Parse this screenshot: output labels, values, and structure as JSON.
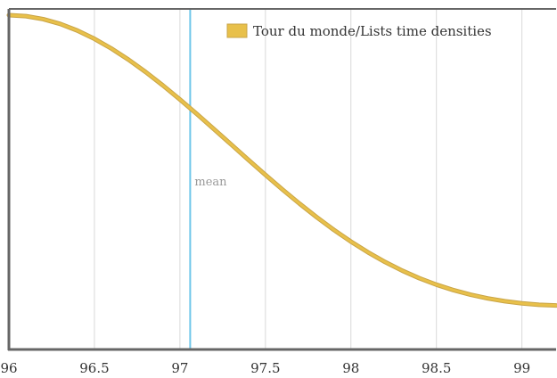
{
  "chart_data": {
    "type": "line",
    "title": "",
    "xlabel": "",
    "ylabel": "",
    "xlim": [
      96,
      99.2
    ],
    "ylim": [
      0.0,
      1.0
    ],
    "x_ticks": [
      96,
      96.5,
      97,
      97.5,
      98,
      98.5,
      99
    ],
    "x_tick_labels": [
      "96",
      "96.5",
      "97",
      "97.5",
      "98",
      "98.5",
      "99"
    ],
    "grid": true,
    "legend_position": "top-right",
    "series": [
      {
        "name": "Tour du monde/Lists time densities",
        "color": "#e8c04a",
        "x": [
          96.0,
          96.1,
          96.2,
          96.3,
          96.4,
          96.5,
          96.6,
          96.7,
          96.8,
          96.9,
          97.0,
          97.1,
          97.2,
          97.3,
          97.4,
          97.5,
          97.6,
          97.7,
          97.8,
          97.9,
          98.0,
          98.1,
          98.2,
          98.3,
          98.4,
          98.5,
          98.6,
          98.7,
          98.8,
          98.9,
          99.0,
          99.1,
          99.2
        ],
        "y": [
          1.0,
          0.9969,
          0.9879,
          0.9733,
          0.9531,
          0.9279,
          0.8981,
          0.8642,
          0.8266,
          0.786,
          0.7431,
          0.6983,
          0.6523,
          0.6058,
          0.5592,
          0.5132,
          0.4684,
          0.4253,
          0.3842,
          0.3456,
          0.3098,
          0.2771,
          0.2475,
          0.2213,
          0.1983,
          0.1785,
          0.1618,
          0.1479,
          0.1367,
          0.128,
          0.1216,
          0.1173,
          0.115
        ]
      }
    ],
    "annotations": [
      {
        "type": "vline",
        "x": 97.06,
        "label": "mean",
        "color": "#6ec6ea"
      }
    ]
  }
}
